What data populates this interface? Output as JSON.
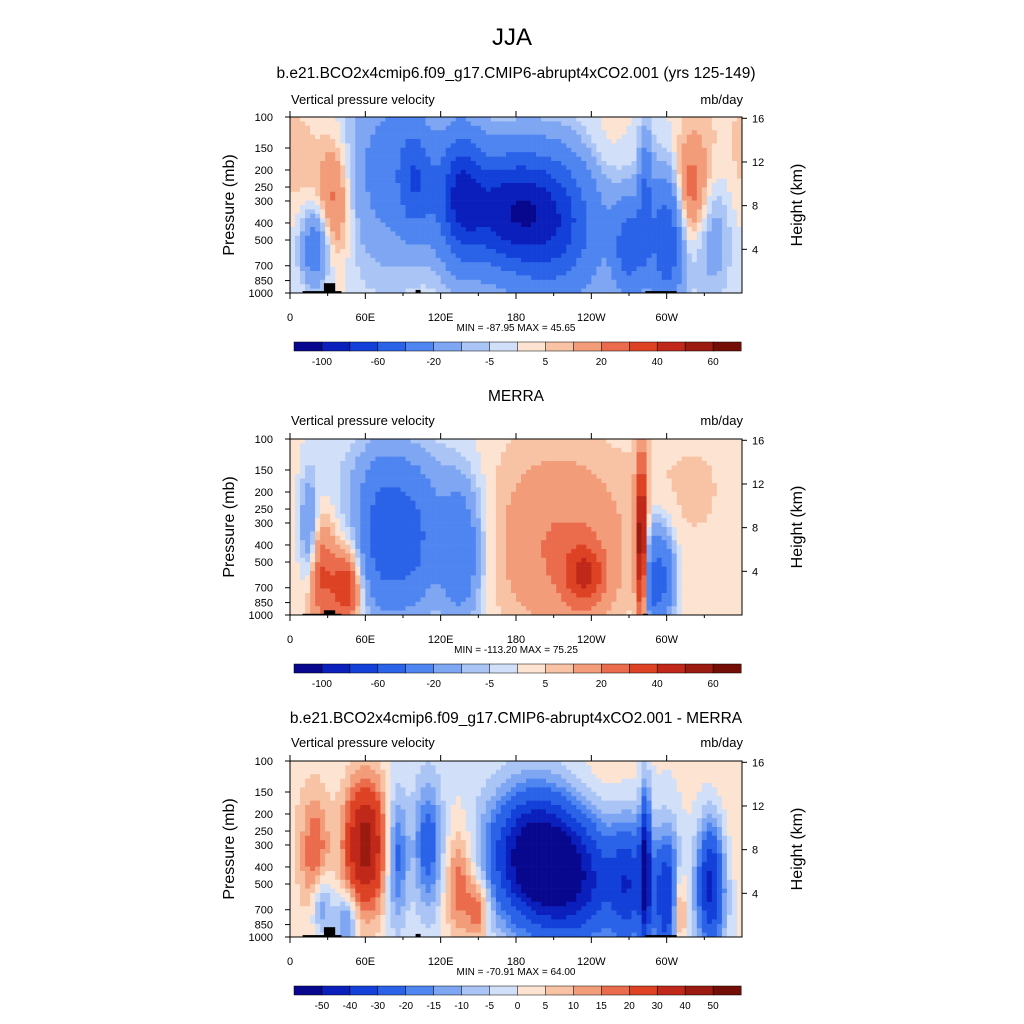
{
  "figure": {
    "title": "JJA"
  },
  "colors": {
    "fieldPalette": [
      "#08088e",
      "#0b1fbc",
      "#1240d8",
      "#2a62e8",
      "#4f85f0",
      "#7ea6f2",
      "#a9c4f5",
      "#d1e0f8",
      "#fde3d1",
      "#f8c3a5",
      "#f29c7a",
      "#ea6c4c",
      "#de4224",
      "#c0281a",
      "#9b1b10",
      "#730d05"
    ],
    "diffPalette": [
      "#08088e",
      "#0b1fbc",
      "#1240d8",
      "#2a62e8",
      "#4f85f0",
      "#7ea6f2",
      "#a9c4f5",
      "#d1e0f8",
      "#fde3d1",
      "#f8c3a5",
      "#f29c7a",
      "#ea6c4c",
      "#de4224",
      "#c0281a",
      "#9b1b10",
      "#730d05"
    ],
    "topography": "#000000"
  },
  "chart_data": [
    {
      "type": "heatmap",
      "title": "b.e21.BCO2x4cmip6.f09_g17.CMIP6-abrupt4xCO2.001 (yrs 125-149)",
      "left_subtitle": "Vertical pressure velocity",
      "right_subtitle": "mb/day",
      "ylabel": "Pressure (mb)",
      "ylabel_right": "Height (km)",
      "xticks": [
        "0",
        "60E",
        "120E",
        "180",
        "120W",
        "60W"
      ],
      "yticks": [
        "100",
        "150",
        "200",
        "250",
        "300",
        "400",
        "500",
        "700",
        "850",
        "1000"
      ],
      "yticks_right": [
        "4",
        "8",
        "12",
        "16"
      ],
      "stats": "MIN = -87.95  MAX =  45.65",
      "colorbar_labels": [
        "-100",
        "-60",
        "-20",
        "-5",
        "5",
        "20",
        "40",
        "60"
      ],
      "palette": "field",
      "features": [
        {
          "lon": 175,
          "p": 340,
          "amp": -90,
          "wlon": 32,
          "wp": 0.55
        },
        {
          "lon": 135,
          "p": 260,
          "amp": -55,
          "wlon": 12,
          "wp": 0.6
        },
        {
          "lon": 100,
          "p": 220,
          "amp": -45,
          "wlon": 10,
          "wp": 0.5
        },
        {
          "lon": 75,
          "p": 200,
          "amp": -25,
          "wlon": 22,
          "wp": 0.9
        },
        {
          "lon": 35,
          "p": 300,
          "amp": 25,
          "wlon": 9,
          "wp": 0.55
        },
        {
          "lon": 20,
          "p": 550,
          "amp": -35,
          "wlon": 8,
          "wp": 0.35
        },
        {
          "lon": 215,
          "p": 450,
          "amp": -40,
          "wlon": 25,
          "wp": 0.7
        },
        {
          "lon": 270,
          "p": 550,
          "amp": -50,
          "wlon": 9,
          "wp": 0.45
        },
        {
          "lon": 283,
          "p": 300,
          "amp": -40,
          "wlon": 4,
          "wp": 0.6
        },
        {
          "lon": 300,
          "p": 500,
          "amp": -60,
          "wlon": 9,
          "wp": 0.6
        },
        {
          "lon": 320,
          "p": 270,
          "amp": 28,
          "wlon": 10,
          "wp": 0.5
        },
        {
          "lon": 335,
          "p": 450,
          "amp": -20,
          "wlon": 12,
          "wp": 0.6
        },
        {
          "lon": 345,
          "p": 180,
          "amp": 6,
          "wlon": 25,
          "wp": 0.9
        },
        {
          "lon": 250,
          "p": 150,
          "amp": 4,
          "wlon": 12,
          "wp": 0.4
        },
        {
          "lon": 10,
          "p": 180,
          "amp": 4,
          "wlon": 10,
          "wp": 0.5
        }
      ],
      "topography": [
        {
          "lon0": 10,
          "lon1": 41,
          "p": 975
        },
        {
          "lon0": 27,
          "lon1": 36,
          "p": 880
        },
        {
          "lon0": 100,
          "lon1": 104,
          "p": 960
        },
        {
          "lon0": 283,
          "lon1": 308,
          "p": 975
        }
      ]
    },
    {
      "type": "heatmap",
      "title": "MERRA",
      "left_subtitle": "Vertical pressure velocity",
      "right_subtitle": "mb/day",
      "ylabel": "Pressure (mb)",
      "ylabel_right": "Height (km)",
      "xticks": [
        "0",
        "60E",
        "120E",
        "180",
        "120W",
        "60W"
      ],
      "yticks": [
        "100",
        "150",
        "200",
        "250",
        "300",
        "400",
        "500",
        "700",
        "850",
        "1000"
      ],
      "yticks_right": [
        "4",
        "8",
        "12",
        "16"
      ],
      "stats": "MIN = -113.20  MAX =  75.25",
      "colorbar_labels": [
        "-100",
        "-60",
        "-20",
        "-5",
        "5",
        "20",
        "40",
        "60"
      ],
      "palette": "field",
      "features": [
        {
          "lon": 75,
          "p": 380,
          "amp": -50,
          "wlon": 14,
          "wp": 0.65
        },
        {
          "lon": 100,
          "p": 400,
          "amp": -35,
          "wlon": 12,
          "wp": 0.6
        },
        {
          "lon": 135,
          "p": 450,
          "amp": -40,
          "wlon": 12,
          "wp": 0.6
        },
        {
          "lon": 90,
          "p": 180,
          "amp": -12,
          "wlon": 40,
          "wp": 0.5
        },
        {
          "lon": 25,
          "p": 600,
          "amp": 30,
          "wlon": 8,
          "wp": 0.5
        },
        {
          "lon": 45,
          "p": 700,
          "amp": 40,
          "wlon": 8,
          "wp": 0.35
        },
        {
          "lon": 15,
          "p": 330,
          "amp": -25,
          "wlon": 5,
          "wp": 0.5
        },
        {
          "lon": 215,
          "p": 450,
          "amp": 20,
          "wlon": 38,
          "wp": 0.75
        },
        {
          "lon": 235,
          "p": 600,
          "amp": 28,
          "wlon": 12,
          "wp": 0.3
        },
        {
          "lon": 280,
          "p": 400,
          "amp": 60,
          "wlon": 3,
          "wp": 0.8
        },
        {
          "lon": 290,
          "p": 650,
          "amp": -45,
          "wlon": 6,
          "wp": 0.5
        },
        {
          "lon": 300,
          "p": 600,
          "amp": -30,
          "wlon": 6,
          "wp": 0.4
        },
        {
          "lon": 330,
          "p": 200,
          "amp": 5,
          "wlon": 35,
          "wp": 1.0
        },
        {
          "lon": 200,
          "p": 150,
          "amp": 5,
          "wlon": 60,
          "wp": 0.6
        }
      ],
      "topography": [
        {
          "lon0": 10,
          "lon1": 41,
          "p": 985
        },
        {
          "lon0": 27,
          "lon1": 36,
          "p": 940
        },
        {
          "lon0": 281,
          "lon1": 285,
          "p": 985
        }
      ]
    },
    {
      "type": "heatmap",
      "title": "b.e21.BCO2x4cmip6.f09_g17.CMIP6-abrupt4xCO2.001 - MERRA",
      "left_subtitle": "Vertical pressure velocity",
      "right_subtitle": "mb/day",
      "ylabel": "Pressure (mb)",
      "ylabel_right": "Height (km)",
      "xticks": [
        "0",
        "60E",
        "120E",
        "180",
        "120W",
        "60W"
      ],
      "yticks": [
        "100",
        "150",
        "200",
        "250",
        "300",
        "400",
        "500",
        "700",
        "850",
        "1000"
      ],
      "yticks_right": [
        "4",
        "8",
        "12",
        "16"
      ],
      "stats": "MIN = -70.91  MAX =  64.00",
      "colorbar_labels": [
        "-50",
        "-40",
        "-30",
        "-20",
        "-15",
        "-10",
        "-5",
        "0",
        "5",
        "10",
        "15",
        "20",
        "30",
        "40",
        "50"
      ],
      "palette": "diff",
      "features": [
        {
          "lon": 195,
          "p": 350,
          "amp": -60,
          "wlon": 25,
          "wp": 0.6
        },
        {
          "lon": 230,
          "p": 500,
          "amp": -35,
          "wlon": 25,
          "wp": 0.6
        },
        {
          "lon": 60,
          "p": 300,
          "amp": 45,
          "wlon": 12,
          "wp": 0.6
        },
        {
          "lon": 85,
          "p": 350,
          "amp": -25,
          "wlon": 6,
          "wp": 0.6
        },
        {
          "lon": 20,
          "p": 350,
          "amp": 20,
          "wlon": 8,
          "wp": 0.6
        },
        {
          "lon": 25,
          "p": 650,
          "amp": -20,
          "wlon": 6,
          "wp": 0.3
        },
        {
          "lon": 45,
          "p": 800,
          "amp": -20,
          "wlon": 6,
          "wp": 0.25
        },
        {
          "lon": 110,
          "p": 300,
          "amp": -25,
          "wlon": 8,
          "wp": 0.6
        },
        {
          "lon": 135,
          "p": 500,
          "amp": 20,
          "wlon": 8,
          "wp": 0.5
        },
        {
          "lon": 150,
          "p": 700,
          "amp": 20,
          "wlon": 6,
          "wp": 0.3
        },
        {
          "lon": 270,
          "p": 500,
          "amp": -30,
          "wlon": 10,
          "wp": 0.6
        },
        {
          "lon": 283,
          "p": 400,
          "amp": -45,
          "wlon": 3,
          "wp": 0.7
        },
        {
          "lon": 300,
          "p": 600,
          "amp": -40,
          "wlon": 8,
          "wp": 0.6
        },
        {
          "lon": 310,
          "p": 700,
          "amp": 25,
          "wlon": 4,
          "wp": 0.4
        },
        {
          "lon": 335,
          "p": 500,
          "amp": -45,
          "wlon": 8,
          "wp": 0.6
        },
        {
          "lon": 345,
          "p": 200,
          "amp": 5,
          "wlon": 20,
          "wp": 0.8
        },
        {
          "lon": 250,
          "p": 130,
          "amp": 4,
          "wlon": 25,
          "wp": 0.4
        }
      ],
      "topography": [
        {
          "lon0": 10,
          "lon1": 41,
          "p": 975
        },
        {
          "lon0": 27,
          "lon1": 36,
          "p": 880
        },
        {
          "lon0": 100,
          "lon1": 104,
          "p": 960
        },
        {
          "lon0": 283,
          "lon1": 308,
          "p": 975
        }
      ]
    }
  ]
}
